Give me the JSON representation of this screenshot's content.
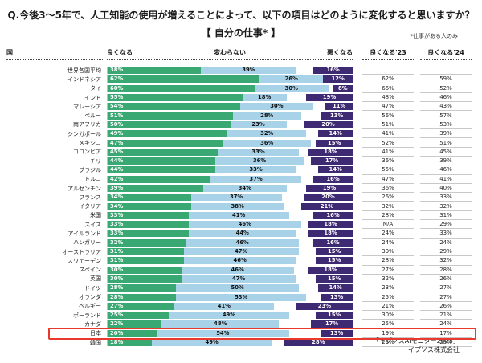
{
  "title": "Q.今後3～5年で、人工知能の使用が増えることによって、以下の項目はどのように変化すると思いますか？",
  "subtitle": "【 自分の仕事* 】",
  "note": "*仕事がある人のみ",
  "source_line1": "「イプソスAIモニター2025」",
  "source_line2": "イプソス株式会社",
  "columns": {
    "country": "国",
    "better": "良くなる",
    "same": "変わらない",
    "worse": "悪くなる",
    "better23": "良くなる'23",
    "better24": "良くなる'24"
  },
  "colors": {
    "better": "#3aa873",
    "same": "#a8d2e8",
    "worse": "#3e2a72",
    "highlight": "#e8392c"
  },
  "chart_data": {
    "type": "bar",
    "stacked": true,
    "orientation": "horizontal",
    "axis_range_percent": [
      0,
      100
    ],
    "series_names": [
      "良くなる",
      "変わらない",
      "悪くなる"
    ],
    "extra_columns": [
      "良くなる'23",
      "良くなる'24"
    ],
    "rows": [
      {
        "country": "世界各国平均",
        "better": 38,
        "same": 39,
        "worse": 16,
        "better23": "",
        "better24": "",
        "highlight": false
      },
      {
        "country": "インドネシア",
        "better": 62,
        "same": 26,
        "worse": 12,
        "better23": "62%",
        "better24": "59%",
        "highlight": false
      },
      {
        "country": "タイ",
        "better": 60,
        "same": 30,
        "worse": 8,
        "better23": "66%",
        "better24": "52%",
        "highlight": false
      },
      {
        "country": "インド",
        "better": 55,
        "same": 18,
        "worse": 19,
        "better23": "48%",
        "better24": "46%",
        "highlight": false
      },
      {
        "country": "マレーシア",
        "better": 54,
        "same": 30,
        "worse": 11,
        "better23": "47%",
        "better24": "43%",
        "highlight": false
      },
      {
        "country": "ペルー",
        "better": 51,
        "same": 28,
        "worse": 13,
        "better23": "56%",
        "better24": "57%",
        "highlight": false
      },
      {
        "country": "南アフリカ",
        "better": 50,
        "same": 23,
        "worse": 20,
        "better23": "51%",
        "better24": "53%",
        "highlight": false
      },
      {
        "country": "シンガポール",
        "better": 49,
        "same": 32,
        "worse": 14,
        "better23": "41%",
        "better24": "39%",
        "highlight": false
      },
      {
        "country": "メキシコ",
        "better": 47,
        "same": 36,
        "worse": 15,
        "better23": "52%",
        "better24": "51%",
        "highlight": false
      },
      {
        "country": "コロンビア",
        "better": 45,
        "same": 33,
        "worse": 18,
        "better23": "41%",
        "better24": "45%",
        "highlight": false
      },
      {
        "country": "チリ",
        "better": 44,
        "same": 36,
        "worse": 17,
        "better23": "36%",
        "better24": "39%",
        "highlight": false
      },
      {
        "country": "ブラジル",
        "better": 44,
        "same": 33,
        "worse": 14,
        "better23": "55%",
        "better24": "46%",
        "highlight": false
      },
      {
        "country": "トルコ",
        "better": 42,
        "same": 37,
        "worse": 16,
        "better23": "47%",
        "better24": "41%",
        "highlight": false
      },
      {
        "country": "アルゼンチン",
        "better": 39,
        "same": 34,
        "worse": 19,
        "better23": "36%",
        "better24": "40%",
        "highlight": false
      },
      {
        "country": "フランス",
        "better": 34,
        "same": 37,
        "worse": 20,
        "better23": "26%",
        "better24": "33%",
        "highlight": false
      },
      {
        "country": "イタリア",
        "better": 34,
        "same": 38,
        "worse": 21,
        "better23": "32%",
        "better24": "32%",
        "highlight": false
      },
      {
        "country": "米国",
        "better": 33,
        "same": 41,
        "worse": 16,
        "better23": "28%",
        "better24": "31%",
        "highlight": false
      },
      {
        "country": "スイス",
        "better": 33,
        "same": 46,
        "worse": 18,
        "better23": "N/A",
        "better24": "29%",
        "highlight": false
      },
      {
        "country": "アイルランド",
        "better": 33,
        "same": 44,
        "worse": 18,
        "better23": "24%",
        "better24": "33%",
        "highlight": false
      },
      {
        "country": "ハンガリー",
        "better": 32,
        "same": 46,
        "worse": 16,
        "better23": "24%",
        "better24": "24%",
        "highlight": false
      },
      {
        "country": "オーストラリア",
        "better": 31,
        "same": 47,
        "worse": 15,
        "better23": "30%",
        "better24": "29%",
        "highlight": false
      },
      {
        "country": "スウェーデン",
        "better": 31,
        "same": 46,
        "worse": 15,
        "better23": "28%",
        "better24": "32%",
        "highlight": false
      },
      {
        "country": "スペイン",
        "better": 30,
        "same": 46,
        "worse": 18,
        "better23": "27%",
        "better24": "28%",
        "highlight": false
      },
      {
        "country": "英国",
        "better": 30,
        "same": 47,
        "worse": 15,
        "better23": "32%",
        "better24": "26%",
        "highlight": false
      },
      {
        "country": "ドイツ",
        "better": 28,
        "same": 50,
        "worse": 14,
        "better23": "23%",
        "better24": "27%",
        "highlight": false
      },
      {
        "country": "オランダ",
        "better": 28,
        "same": 53,
        "worse": 13,
        "better23": "25%",
        "better24": "27%",
        "highlight": false
      },
      {
        "country": "ベルギー",
        "better": 27,
        "same": 41,
        "worse": 23,
        "better23": "21%",
        "better24": "26%",
        "highlight": false
      },
      {
        "country": "ポーランド",
        "better": 25,
        "same": 49,
        "worse": 15,
        "better23": "30%",
        "better24": "21%",
        "highlight": false
      },
      {
        "country": "カナダ",
        "better": 22,
        "same": 48,
        "worse": 17,
        "better23": "25%",
        "better24": "24%",
        "highlight": false
      },
      {
        "country": "日本",
        "better": 20,
        "same": 54,
        "worse": 13,
        "better23": "19%",
        "better24": "17%",
        "highlight": true
      },
      {
        "country": "韓国",
        "better": 18,
        "same": 49,
        "worse": 28,
        "better23": "23%",
        "better24": "23%",
        "highlight": false
      }
    ]
  }
}
